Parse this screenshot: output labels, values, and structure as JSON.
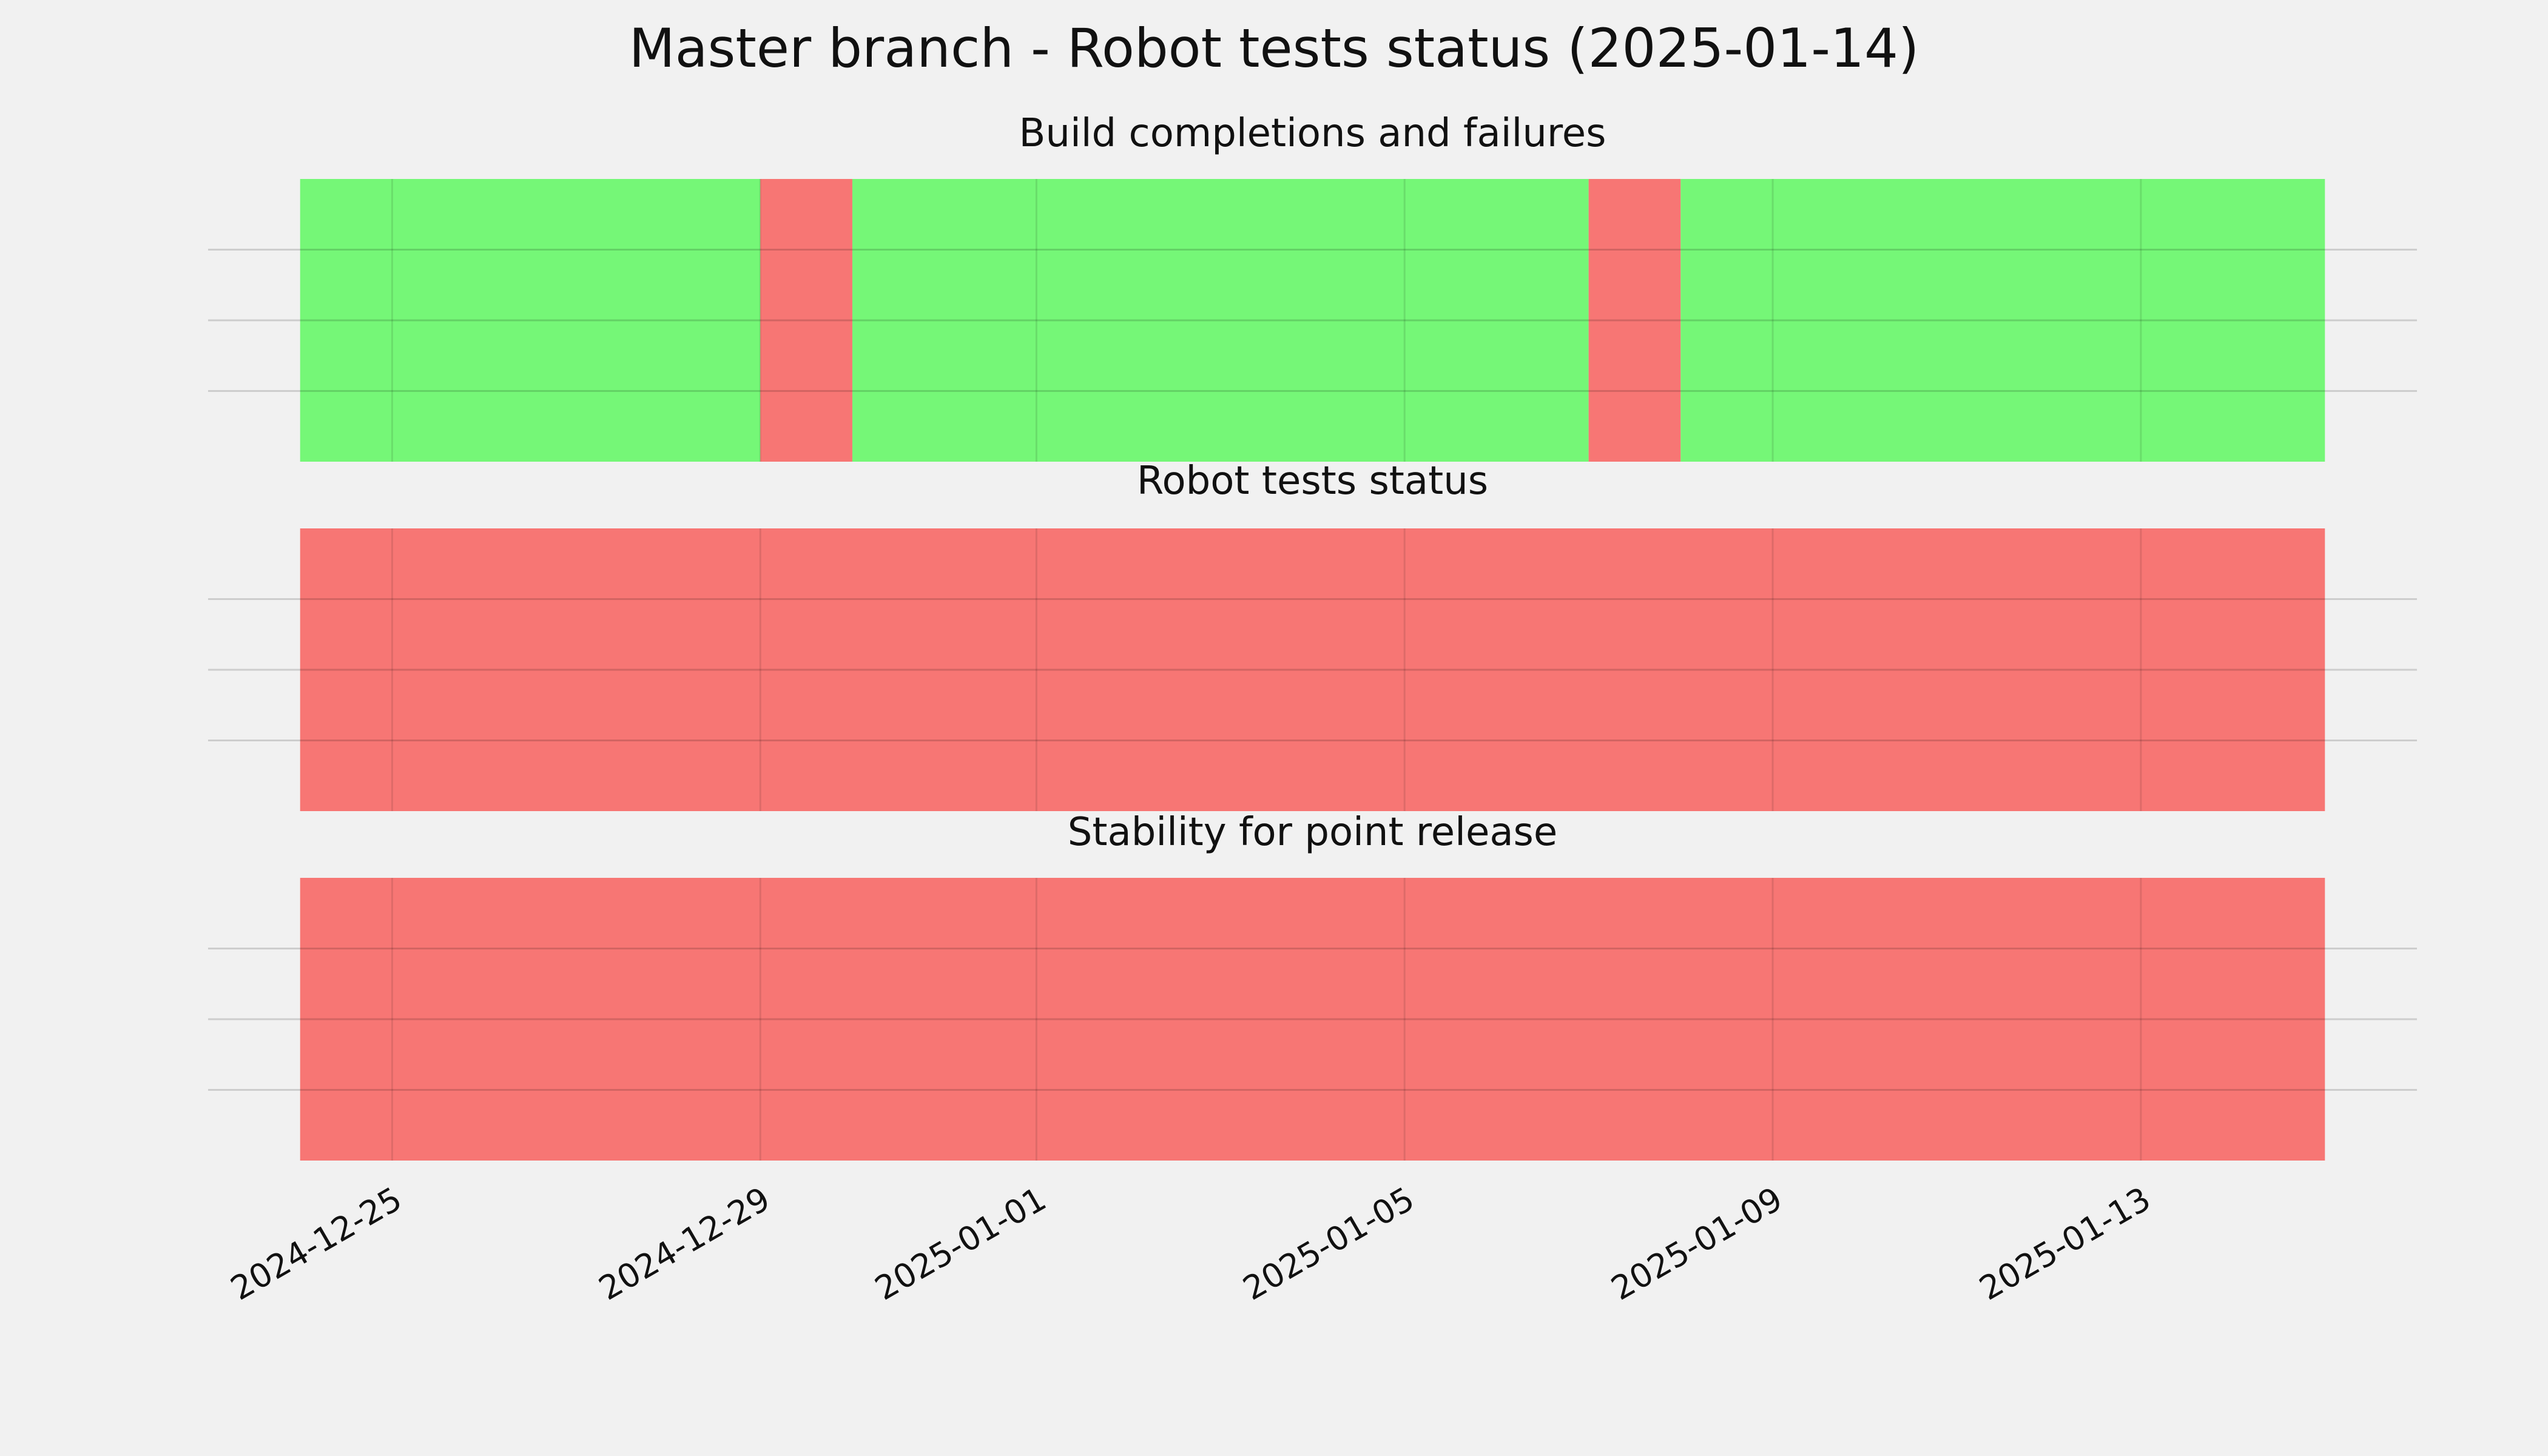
{
  "title": "Master branch - Robot tests status (2025-01-14)",
  "chart_data": [
    {
      "type": "timeline",
      "title": "Build completions and failures",
      "starts": [
        "2024-12-24",
        "2024-12-29",
        "2024-12-30",
        "2025-01-07",
        "2025-01-08"
      ],
      "ends": [
        "2024-12-29",
        "2024-12-30",
        "2025-01-07",
        "2025-01-08",
        "2025-01-15"
      ],
      "values": [
        1,
        1,
        1,
        1,
        1
      ],
      "colors": [
        "#75f777",
        "#f77674",
        "#75f777",
        "#f77674",
        "#75f777"
      ],
      "xlim": [
        "2024-12-23",
        "2025-01-16"
      ],
      "xticks": [
        "2024-12-25",
        "2024-12-29",
        "2025-01-01",
        "2025-01-05",
        "2025-01-09",
        "2025-01-13"
      ],
      "ylim": [
        0,
        1
      ],
      "yticks": [
        0.25,
        0.5,
        0.75
      ],
      "grid": true
    },
    {
      "type": "timeline",
      "title": "Robot tests status",
      "starts": [
        "2024-12-24"
      ],
      "ends": [
        "2025-01-15"
      ],
      "values": [
        1
      ],
      "colors": [
        "#f77674"
      ],
      "xlim": [
        "2024-12-23",
        "2025-01-16"
      ],
      "xticks": [
        "2024-12-25",
        "2024-12-29",
        "2025-01-01",
        "2025-01-05",
        "2025-01-09",
        "2025-01-13"
      ],
      "ylim": [
        0,
        1
      ],
      "yticks": [
        0.25,
        0.5,
        0.75
      ],
      "grid": true
    },
    {
      "type": "timeline",
      "title": "Stability for point release",
      "starts": [
        "2024-12-24"
      ],
      "ends": [
        "2025-01-15"
      ],
      "values": [
        1
      ],
      "colors": [
        "#f77674"
      ],
      "xlim": [
        "2024-12-23",
        "2025-01-16"
      ],
      "xticks": [
        "2024-12-25",
        "2024-12-29",
        "2025-01-01",
        "2025-01-05",
        "2025-01-09",
        "2025-01-13"
      ],
      "ylim": [
        0,
        1
      ],
      "yticks": [
        0.25,
        0.5,
        0.75
      ],
      "grid": true
    }
  ]
}
